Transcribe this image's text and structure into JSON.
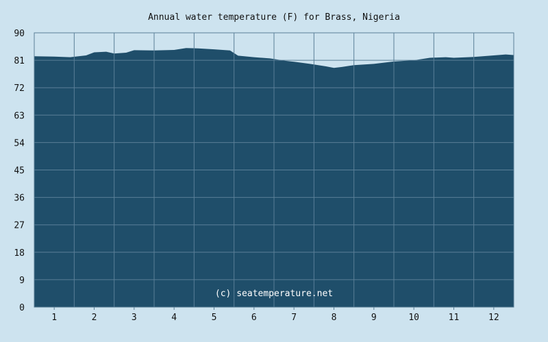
{
  "chart_data": {
    "type": "area",
    "title": "Annual water temperature (F) for Brass, Nigeria",
    "xlabel": "",
    "ylabel": "",
    "ylim": [
      0,
      90
    ],
    "xlim": [
      0.5,
      12.5
    ],
    "y_ticks": [
      "0",
      "9",
      "18",
      "27",
      "36",
      "45",
      "54",
      "63",
      "72",
      "81",
      "90"
    ],
    "x_ticks": [
      "1",
      "2",
      "3",
      "4",
      "5",
      "6",
      "7",
      "8",
      "9",
      "10",
      "11",
      "12"
    ],
    "grid": true,
    "series": [
      {
        "x": [
          0.5,
          1,
          1.4,
          1.8,
          2,
          2.3,
          2.5,
          2.8,
          3,
          3.5,
          4,
          4.3,
          4.6,
          5,
          5.4,
          5.6,
          6,
          6.4,
          6.8,
          7,
          7.4,
          7.8,
          8,
          8.2,
          8.5,
          9,
          9.5,
          10,
          10.4,
          10.8,
          11,
          11.5,
          12,
          12.3,
          12.5
        ],
        "y": [
          82.3,
          82.2,
          82.0,
          82.6,
          83.6,
          83.8,
          83.2,
          83.5,
          84.3,
          84.2,
          84.4,
          85.0,
          84.9,
          84.6,
          84.2,
          82.5,
          82.0,
          81.6,
          80.8,
          80.5,
          79.8,
          79.0,
          78.5,
          78.8,
          79.4,
          79.8,
          80.6,
          81.0,
          81.8,
          82.0,
          81.8,
          82.1,
          82.6,
          82.9,
          82.7
        ]
      }
    ],
    "colors": {
      "background": "#cde3ef",
      "plot_fill": "#1f4e6a",
      "grid": "#5a7f97",
      "text": "#111111",
      "watermark": "#ffffff"
    },
    "annotation": "(c) seatemperature.net"
  }
}
